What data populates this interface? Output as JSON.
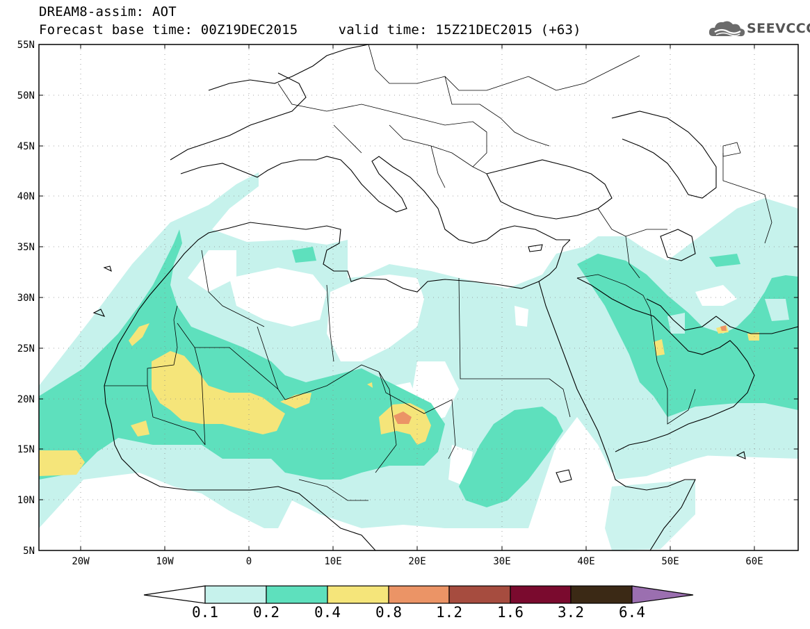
{
  "title": {
    "line1": "DREAM8-assim: AOT",
    "base_time": "Forecast base time: 00Z19DEC2015",
    "valid_time": "valid time: 15Z21DEC2015 (+63)"
  },
  "logo": {
    "text": "SEEVCCC",
    "icon": "cloud-logo-icon"
  },
  "lat_labels": [
    "55N",
    "50N",
    "45N",
    "40N",
    "35N",
    "30N",
    "25N",
    "20N",
    "15N",
    "10N",
    "5N"
  ],
  "lon_labels": [
    "20W",
    "10W",
    "0",
    "10E",
    "20E",
    "30E",
    "40E",
    "50E",
    "60E"
  ],
  "colorbar": {
    "labels": [
      "0.1",
      "0.2",
      "0.4",
      "0.8",
      "1.2",
      "1.6",
      "3.2",
      "6.4"
    ],
    "colors": [
      "#c6f2ec",
      "#5ee0bd",
      "#f5e57a",
      "#eb9466",
      "#a64c3f",
      "#7a0a2e",
      "#3b2915",
      "#9b6fb0"
    ],
    "under_color": "#ffffff",
    "over_color": "#9b6fb0"
  },
  "map": {
    "variable": "AOT",
    "level_colors": {
      "l1": "#c6f2ec",
      "l2": "#5ee0bd",
      "l3": "#f5e57a",
      "l4": "#eb9466",
      "l5": "#a64c3f"
    },
    "lon_range": [
      -25,
      65
    ],
    "lat_range": [
      5,
      55
    ]
  }
}
